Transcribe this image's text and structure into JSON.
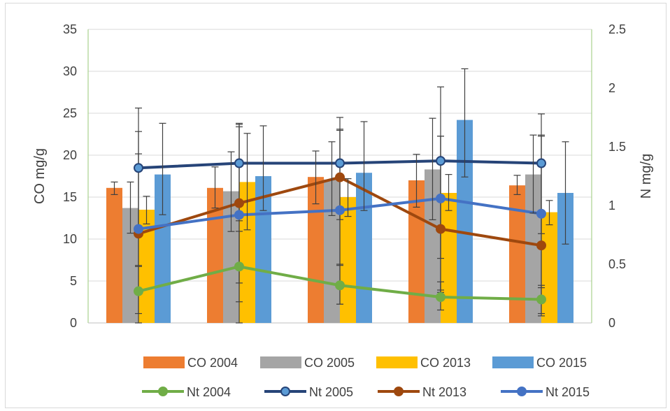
{
  "chart_data": {
    "type": "bar",
    "categories": [
      "",
      "",
      "",
      "",
      ""
    ],
    "title": "",
    "xlabel": "",
    "ylabel": "CO mg/g",
    "y2label": "N mg/g",
    "ylim": [
      0,
      35
    ],
    "y2lim": [
      0,
      2.5
    ],
    "yticks": [
      "0",
      "5",
      "10",
      "15",
      "20",
      "25",
      "30",
      "35"
    ],
    "y2ticks": [
      "0",
      "0.5",
      "1",
      "1.5",
      "2",
      "2.5"
    ],
    "grid": "horizontal",
    "legend_position": "bottom",
    "bar_series": [
      {
        "name": "CO 2004",
        "color": "#ED7D31",
        "values": [
          16.1,
          16.1,
          17.4,
          17.0,
          16.4
        ],
        "err_low": [
          15.3,
          13.7,
          14.2,
          13.8,
          15.3
        ],
        "err_high": [
          16.8,
          18.6,
          20.5,
          20.1,
          17.6
        ]
      },
      {
        "name": "CO 2005",
        "color": "#A5A5A5",
        "values": [
          13.7,
          15.7,
          17.1,
          18.3,
          17.7
        ],
        "err_low": [
          10.7,
          10.9,
          12.8,
          12.3,
          13.1
        ],
        "err_high": [
          16.8,
          20.4,
          21.6,
          24.4,
          22.4
        ]
      },
      {
        "name": "CO 2013",
        "color": "#FFC000",
        "values": [
          13.5,
          16.8,
          15.0,
          15.5,
          13.2
        ],
        "err_low": [
          11.8,
          11.1,
          12.7,
          13.4,
          11.7
        ],
        "err_high": [
          15.1,
          22.6,
          17.2,
          17.7,
          14.6
        ]
      },
      {
        "name": "CO 2015",
        "color": "#5B9BD5",
        "values": [
          17.7,
          17.5,
          17.9,
          24.2,
          15.5
        ],
        "err_low": [
          12.9,
          13.4,
          13.4,
          17.4,
          9.4
        ],
        "err_high": [
          23.8,
          23.5,
          24.0,
          30.3,
          21.6
        ]
      }
    ],
    "line_series": [
      {
        "name": "Nt 2004",
        "color": "#70AD47",
        "marker_fill": "#70AD47",
        "values": [
          0.27,
          0.48,
          0.32,
          0.22,
          0.2
        ],
        "err_low": [
          0.08,
          0.18,
          0.16,
          0.11,
          0.06
        ],
        "err_high": [
          0.48,
          0.78,
          0.5,
          0.35,
          0.32
        ]
      },
      {
        "name": "Nt 2005",
        "color": "#264478",
        "marker_fill": "#5B9BD5",
        "values": [
          1.32,
          1.36,
          1.36,
          1.38,
          1.36
        ],
        "err_low": [
          0.78,
          0.87,
          0.88,
          0.55,
          0.76
        ],
        "err_high": [
          1.83,
          1.69,
          1.75,
          2.01,
          1.78
        ]
      },
      {
        "name": "Nt 2013",
        "color": "#9E480E",
        "values": [
          0.76,
          1.02,
          1.24,
          0.8,
          0.66
        ],
        "err_low": [
          0.0,
          0.34,
          0.16,
          0.26,
          0.08
        ],
        "err_high": [
          1.63,
          1.7,
          1.65,
          1.59,
          1.59
        ]
      },
      {
        "name": "Nt 2015",
        "color": "#4472C4",
        "values": [
          0.8,
          0.92,
          0.96,
          1.06,
          0.93
        ],
        "err_low": [
          0.49,
          0.0,
          0.49,
          0.28,
          0.3
        ],
        "err_high": [
          1.44,
          1.67,
          1.64,
          1.59,
          1.6
        ]
      }
    ]
  }
}
